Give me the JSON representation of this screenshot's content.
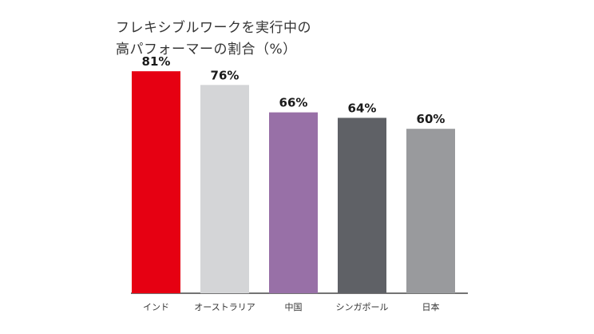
{
  "chart_data": {
    "type": "bar",
    "title_lines": [
      "フレキシブルワークを実行中の",
      "高パフォーマーの割合（%）"
    ],
    "categories": [
      "インド",
      "オーストラリア",
      "中国",
      "シンガポール",
      "日本"
    ],
    "values": [
      81,
      76,
      66,
      64,
      60
    ],
    "value_labels": [
      "81%",
      "76%",
      "66%",
      "64%",
      "60%"
    ],
    "colors": [
      "#e60012",
      "#d4d5d7",
      "#9870a7",
      "#5f6166",
      "#999a9d"
    ],
    "xlabel": "",
    "ylabel": "",
    "ylim": [
      0,
      100
    ],
    "grid": false,
    "legend": "none"
  }
}
